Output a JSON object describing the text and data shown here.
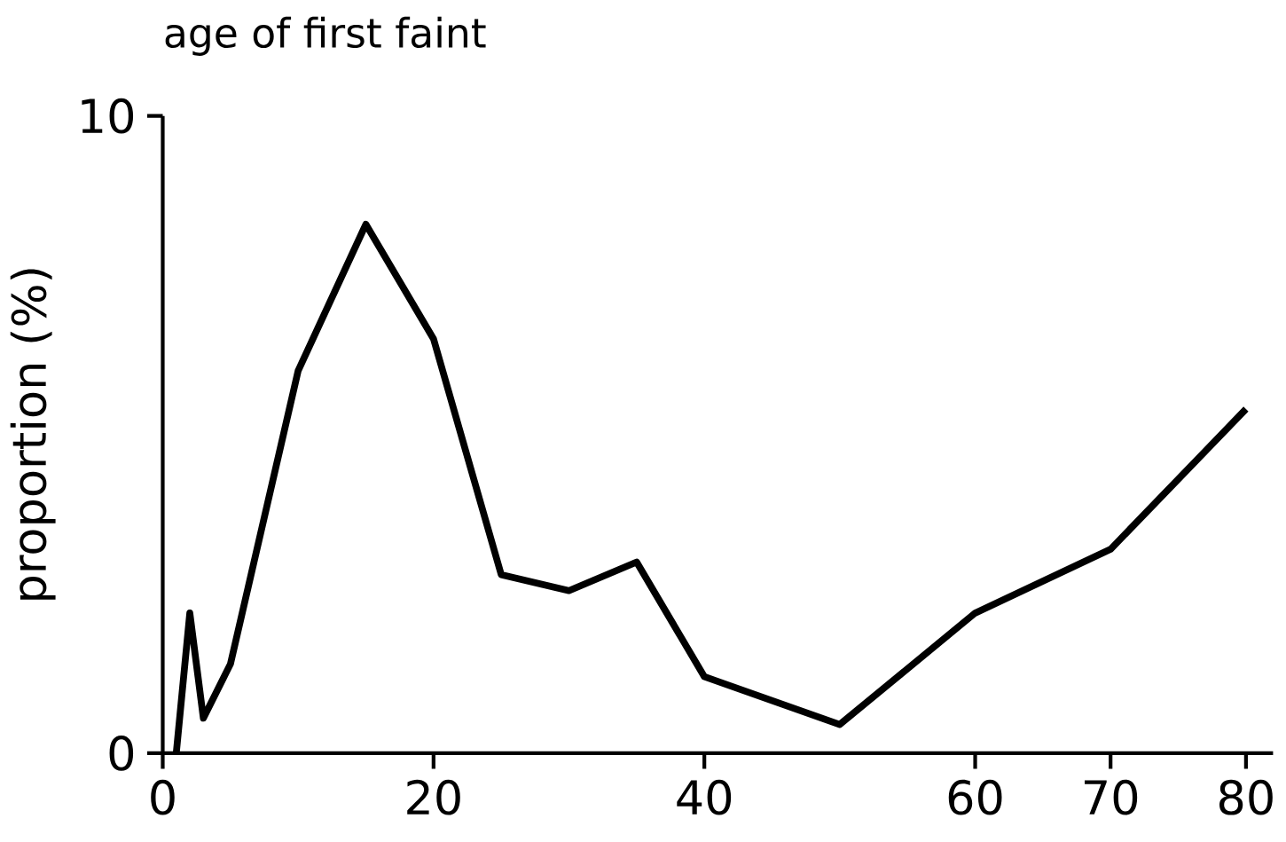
{
  "chart_data": {
    "type": "line",
    "title": "age of first faint",
    "ylabel": "proportion (%)",
    "x": [
      1,
      2,
      3,
      5,
      10,
      15,
      20,
      25,
      30,
      35,
      40,
      50,
      60,
      70,
      80
    ],
    "series": [
      {
        "color": "#000000",
        "line_style": "solid",
        "values": [
          0,
          2.2,
          0.55,
          1.4,
          6.0,
          8.3,
          6.5,
          2.8,
          2.55,
          3.0,
          1.2,
          0.45,
          2.2,
          3.2,
          5.4
        ]
      }
    ],
    "xlim": [
      0,
      82
    ],
    "ylim": [
      0,
      10
    ],
    "xticks": [
      0,
      20,
      40,
      60,
      70,
      80
    ],
    "yticks": [
      0,
      10
    ]
  }
}
